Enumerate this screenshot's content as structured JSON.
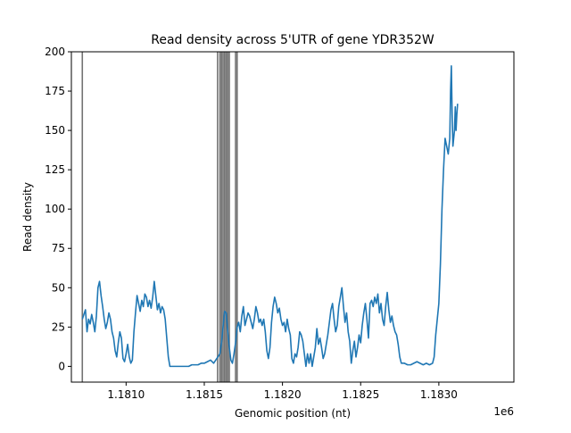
{
  "chart_data": {
    "type": "line",
    "title": "Read density across 5'UTR of gene YDR352W",
    "xlabel": "Genomic position (nt)",
    "ylabel": "Read density",
    "x_offset_label": "1e6",
    "xlim": [
      1180650,
      1183480
    ],
    "ylim": [
      -10,
      200
    ],
    "grid": false,
    "x_ticks": [
      {
        "value": 1181000,
        "label": "1.1810"
      },
      {
        "value": 1181500,
        "label": "1.1815"
      },
      {
        "value": 1182000,
        "label": "1.1820"
      },
      {
        "value": 1182500,
        "label": "1.1825"
      },
      {
        "value": 1183000,
        "label": "1.1830"
      }
    ],
    "y_ticks": [
      {
        "value": 0,
        "label": "0"
      },
      {
        "value": 25,
        "label": "25"
      },
      {
        "value": 50,
        "label": "50"
      },
      {
        "value": 75,
        "label": "75"
      },
      {
        "value": 100,
        "label": "100"
      },
      {
        "value": 125,
        "label": "125"
      },
      {
        "value": 150,
        "label": "150"
      },
      {
        "value": 175,
        "label": "175"
      },
      {
        "value": 200,
        "label": "200"
      }
    ],
    "vertical_lines": [
      1180720,
      1181585,
      1181600,
      1181610,
      1181620,
      1181630,
      1181640,
      1181650,
      1181660,
      1181700,
      1181710
    ],
    "series": [
      {
        "color": "#1f77b4",
        "points": [
          [
            1180720,
            30
          ],
          [
            1180730,
            33
          ],
          [
            1180740,
            36
          ],
          [
            1180750,
            22
          ],
          [
            1180760,
            30
          ],
          [
            1180770,
            27
          ],
          [
            1180780,
            33
          ],
          [
            1180790,
            28
          ],
          [
            1180800,
            22
          ],
          [
            1180810,
            32
          ],
          [
            1180820,
            50
          ],
          [
            1180830,
            54
          ],
          [
            1180840,
            45
          ],
          [
            1180850,
            38
          ],
          [
            1180860,
            30
          ],
          [
            1180870,
            24
          ],
          [
            1180880,
            28
          ],
          [
            1180890,
            34
          ],
          [
            1180900,
            30
          ],
          [
            1180910,
            22
          ],
          [
            1180920,
            18
          ],
          [
            1180930,
            10
          ],
          [
            1180940,
            6
          ],
          [
            1180950,
            15
          ],
          [
            1180960,
            22
          ],
          [
            1180970,
            18
          ],
          [
            1180980,
            5
          ],
          [
            1180990,
            3
          ],
          [
            1181000,
            8
          ],
          [
            1181010,
            14
          ],
          [
            1181020,
            6
          ],
          [
            1181030,
            2
          ],
          [
            1181040,
            4
          ],
          [
            1181050,
            22
          ],
          [
            1181060,
            34
          ],
          [
            1181070,
            45
          ],
          [
            1181080,
            40
          ],
          [
            1181090,
            35
          ],
          [
            1181100,
            42
          ],
          [
            1181110,
            38
          ],
          [
            1181120,
            46
          ],
          [
            1181130,
            44
          ],
          [
            1181140,
            38
          ],
          [
            1181150,
            42
          ],
          [
            1181160,
            37
          ],
          [
            1181170,
            44
          ],
          [
            1181180,
            54
          ],
          [
            1181190,
            45
          ],
          [
            1181200,
            36
          ],
          [
            1181210,
            40
          ],
          [
            1181220,
            34
          ],
          [
            1181230,
            38
          ],
          [
            1181240,
            36
          ],
          [
            1181250,
            30
          ],
          [
            1181260,
            18
          ],
          [
            1181270,
            6
          ],
          [
            1181280,
            0
          ],
          [
            1181300,
            0
          ],
          [
            1181320,
            0
          ],
          [
            1181340,
            0
          ],
          [
            1181360,
            0
          ],
          [
            1181380,
            0
          ],
          [
            1181400,
            0
          ],
          [
            1181420,
            1
          ],
          [
            1181440,
            1
          ],
          [
            1181460,
            1
          ],
          [
            1181480,
            2
          ],
          [
            1181500,
            2
          ],
          [
            1181520,
            3
          ],
          [
            1181540,
            4
          ],
          [
            1181560,
            2
          ],
          [
            1181580,
            5
          ],
          [
            1181600,
            8
          ],
          [
            1181610,
            15
          ],
          [
            1181620,
            25
          ],
          [
            1181630,
            35
          ],
          [
            1181640,
            34
          ],
          [
            1181650,
            22
          ],
          [
            1181660,
            12
          ],
          [
            1181670,
            4
          ],
          [
            1181680,
            2
          ],
          [
            1181690,
            8
          ],
          [
            1181700,
            15
          ],
          [
            1181710,
            25
          ],
          [
            1181720,
            28
          ],
          [
            1181730,
            22
          ],
          [
            1181740,
            32
          ],
          [
            1181750,
            38
          ],
          [
            1181760,
            26
          ],
          [
            1181770,
            30
          ],
          [
            1181780,
            34
          ],
          [
            1181790,
            32
          ],
          [
            1181800,
            28
          ],
          [
            1181810,
            24
          ],
          [
            1181820,
            30
          ],
          [
            1181830,
            38
          ],
          [
            1181840,
            34
          ],
          [
            1181850,
            28
          ],
          [
            1181860,
            30
          ],
          [
            1181870,
            26
          ],
          [
            1181880,
            30
          ],
          [
            1181890,
            22
          ],
          [
            1181900,
            10
          ],
          [
            1181910,
            5
          ],
          [
            1181920,
            12
          ],
          [
            1181930,
            28
          ],
          [
            1181940,
            38
          ],
          [
            1181950,
            44
          ],
          [
            1181960,
            40
          ],
          [
            1181970,
            34
          ],
          [
            1181980,
            37
          ],
          [
            1181990,
            30
          ],
          [
            1182000,
            26
          ],
          [
            1182010,
            28
          ],
          [
            1182020,
            22
          ],
          [
            1182030,
            30
          ],
          [
            1182040,
            24
          ],
          [
            1182050,
            20
          ],
          [
            1182060,
            5
          ],
          [
            1182070,
            2
          ],
          [
            1182080,
            8
          ],
          [
            1182090,
            6
          ],
          [
            1182100,
            12
          ],
          [
            1182110,
            22
          ],
          [
            1182120,
            20
          ],
          [
            1182130,
            16
          ],
          [
            1182140,
            8
          ],
          [
            1182150,
            0
          ],
          [
            1182160,
            8
          ],
          [
            1182170,
            2
          ],
          [
            1182180,
            8
          ],
          [
            1182190,
            0
          ],
          [
            1182200,
            6
          ],
          [
            1182210,
            12
          ],
          [
            1182220,
            24
          ],
          [
            1182230,
            14
          ],
          [
            1182240,
            18
          ],
          [
            1182250,
            12
          ],
          [
            1182260,
            5
          ],
          [
            1182270,
            8
          ],
          [
            1182280,
            14
          ],
          [
            1182290,
            20
          ],
          [
            1182300,
            28
          ],
          [
            1182310,
            36
          ],
          [
            1182320,
            40
          ],
          [
            1182330,
            30
          ],
          [
            1182340,
            22
          ],
          [
            1182350,
            26
          ],
          [
            1182360,
            38
          ],
          [
            1182370,
            44
          ],
          [
            1182380,
            50
          ],
          [
            1182390,
            38
          ],
          [
            1182400,
            28
          ],
          [
            1182410,
            34
          ],
          [
            1182420,
            22
          ],
          [
            1182430,
            16
          ],
          [
            1182440,
            2
          ],
          [
            1182450,
            10
          ],
          [
            1182460,
            16
          ],
          [
            1182470,
            6
          ],
          [
            1182480,
            12
          ],
          [
            1182490,
            20
          ],
          [
            1182500,
            15
          ],
          [
            1182510,
            26
          ],
          [
            1182520,
            34
          ],
          [
            1182530,
            40
          ],
          [
            1182540,
            30
          ],
          [
            1182550,
            18
          ],
          [
            1182560,
            40
          ],
          [
            1182570,
            42
          ],
          [
            1182580,
            38
          ],
          [
            1182590,
            44
          ],
          [
            1182600,
            40
          ],
          [
            1182610,
            46
          ],
          [
            1182620,
            34
          ],
          [
            1182630,
            40
          ],
          [
            1182640,
            30
          ],
          [
            1182650,
            26
          ],
          [
            1182660,
            38
          ],
          [
            1182670,
            47
          ],
          [
            1182680,
            36
          ],
          [
            1182690,
            28
          ],
          [
            1182700,
            32
          ],
          [
            1182710,
            26
          ],
          [
            1182720,
            22
          ],
          [
            1182730,
            20
          ],
          [
            1182740,
            14
          ],
          [
            1182750,
            6
          ],
          [
            1182760,
            2
          ],
          [
            1182780,
            2
          ],
          [
            1182800,
            1
          ],
          [
            1182820,
            1
          ],
          [
            1182840,
            2
          ],
          [
            1182860,
            3
          ],
          [
            1182880,
            2
          ],
          [
            1182900,
            1
          ],
          [
            1182920,
            2
          ],
          [
            1182940,
            1
          ],
          [
            1182960,
            2
          ],
          [
            1182970,
            6
          ],
          [
            1182980,
            20
          ],
          [
            1182990,
            30
          ],
          [
            1183000,
            40
          ],
          [
            1183010,
            65
          ],
          [
            1183020,
            100
          ],
          [
            1183030,
            125
          ],
          [
            1183040,
            145
          ],
          [
            1183050,
            140
          ],
          [
            1183060,
            135
          ],
          [
            1183070,
            145
          ],
          [
            1183075,
            175
          ],
          [
            1183080,
            191
          ],
          [
            1183085,
            160
          ],
          [
            1183090,
            140
          ],
          [
            1183100,
            150
          ],
          [
            1183105,
            165
          ],
          [
            1183110,
            150
          ],
          [
            1183115,
            160
          ],
          [
            1183120,
            167
          ]
        ]
      }
    ]
  }
}
